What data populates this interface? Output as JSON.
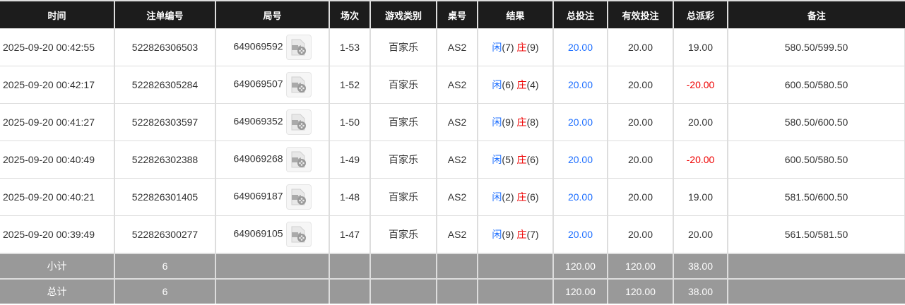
{
  "headers": [
    "时间",
    "注单编号",
    "局号",
    "场次",
    "游戏类别",
    "桌号",
    "结果",
    "总投注",
    "有效投注",
    "总派彩",
    "备注"
  ],
  "rows": [
    {
      "time": "2025-09-20 00:42:55",
      "bet_id": "522826306503",
      "round": "649069592",
      "session": "1-53",
      "game": "百家乐",
      "table": "AS2",
      "player_label": "闲",
      "player": "(7)",
      "banker_label": "庄",
      "banker": "(9)",
      "total_bet": "20.00",
      "valid_bet": "20.00",
      "payout": "19.00",
      "payout_negative": false,
      "note": "580.50/599.50"
    },
    {
      "time": "2025-09-20 00:42:17",
      "bet_id": "522826305284",
      "round": "649069507",
      "session": "1-52",
      "game": "百家乐",
      "table": "AS2",
      "player_label": "闲",
      "player": "(6)",
      "banker_label": "庄",
      "banker": "(4)",
      "total_bet": "20.00",
      "valid_bet": "20.00",
      "payout": "-20.00",
      "payout_negative": true,
      "note": "600.50/580.50"
    },
    {
      "time": "2025-09-20 00:41:27",
      "bet_id": "522826303597",
      "round": "649069352",
      "session": "1-50",
      "game": "百家乐",
      "table": "AS2",
      "player_label": "闲",
      "player": "(9)",
      "banker_label": "庄",
      "banker": "(8)",
      "total_bet": "20.00",
      "valid_bet": "20.00",
      "payout": "20.00",
      "payout_negative": false,
      "note": "580.50/600.50"
    },
    {
      "time": "2025-09-20 00:40:49",
      "bet_id": "522826302388",
      "round": "649069268",
      "session": "1-49",
      "game": "百家乐",
      "table": "AS2",
      "player_label": "闲",
      "player": "(5)",
      "banker_label": "庄",
      "banker": "(6)",
      "total_bet": "20.00",
      "valid_bet": "20.00",
      "payout": "-20.00",
      "payout_negative": true,
      "note": "600.50/580.50"
    },
    {
      "time": "2025-09-20 00:40:21",
      "bet_id": "522826301405",
      "round": "649069187",
      "session": "1-48",
      "game": "百家乐",
      "table": "AS2",
      "player_label": "闲",
      "player": "(2)",
      "banker_label": "庄",
      "banker": "(6)",
      "total_bet": "20.00",
      "valid_bet": "20.00",
      "payout": "19.00",
      "payout_negative": false,
      "note": "581.50/600.50"
    },
    {
      "time": "2025-09-20 00:39:49",
      "bet_id": "522826300277",
      "round": "649069105",
      "session": "1-47",
      "game": "百家乐",
      "table": "AS2",
      "player_label": "闲",
      "player": "(9)",
      "banker_label": "庄",
      "banker": "(7)",
      "total_bet": "20.00",
      "valid_bet": "20.00",
      "payout": "20.00",
      "payout_negative": false,
      "note": "561.50/581.50"
    }
  ],
  "summary": [
    {
      "label": "小计",
      "count": "6",
      "total_bet": "120.00",
      "valid_bet": "120.00",
      "payout": "38.00"
    },
    {
      "label": "总计",
      "count": "6",
      "total_bet": "120.00",
      "valid_bet": "120.00",
      "payout": "38.00"
    }
  ],
  "colors": {
    "header_bg": "#1c1c1c",
    "summary_bg": "#999999",
    "blue": "#1e6fff",
    "red": "#ee0000"
  },
  "icons": {
    "replay": "video-replay-icon"
  }
}
